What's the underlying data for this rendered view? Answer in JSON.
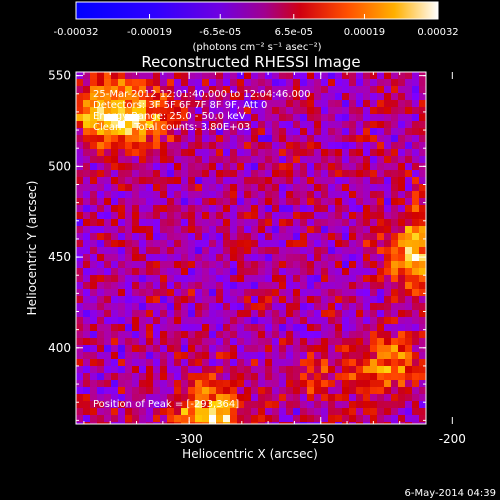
{
  "colorbar": {
    "tick_labels": [
      "-0.00032",
      "-0.00019",
      "-6.5e-05",
      "6.5e-05",
      "0.00019",
      "0.00032"
    ],
    "tick_values": [
      -0.00032,
      -0.00019,
      -6.5e-05,
      6.5e-05,
      0.00019,
      0.00032
    ],
    "range": [
      -0.00032,
      0.00032
    ],
    "units": "(photons cm⁻² s⁻¹ asec⁻²)",
    "colors": [
      "#0000ff",
      "#3a00ff",
      "#8000ff",
      "#b000a0",
      "#d00000",
      "#ff4000",
      "#ff9000",
      "#ffd000",
      "#ffffff"
    ]
  },
  "plot": {
    "title": "Reconstructed RHESSI Image",
    "annotations": [
      "25-Mar-2012 12:01:40.000 to 12:04:46.000",
      "Detectors: 3F 5F 6F 7F 8F 9F, Att 0",
      "Energy Range: 25.0 - 50.0 keV",
      "Clean    Total counts: 3.80E+03"
    ],
    "peak_label": "Position of Peak = [-293,364]",
    "xlabel": "Heliocentric X (arcsec)",
    "ylabel": "Heliocentric Y (arcsec)",
    "x_tick_labels": [
      "-300",
      "-250",
      "-200"
    ],
    "x_tick_values": [
      -300,
      -250,
      -200
    ],
    "y_tick_labels": [
      "550",
      "500",
      "450",
      "400"
    ],
    "y_tick_values": [
      550,
      500,
      450,
      400
    ],
    "xlim": [
      -343,
      -210
    ],
    "ylim": [
      358,
      552
    ]
  },
  "footer": {
    "timestamp": "6-May-2014 04:39"
  },
  "chart_data": {
    "type": "heatmap",
    "title": "Reconstructed RHESSI Image",
    "xlabel": "Heliocentric X (arcsec)",
    "ylabel": "Heliocentric Y (arcsec)",
    "xlim": [
      -343,
      -210
    ],
    "ylim": [
      358,
      552
    ],
    "value_range": [
      -0.00032,
      0.00032
    ],
    "peak_position": [
      -293,
      364
    ],
    "hotspots": [
      {
        "x": -293,
        "y": 364,
        "value": 0.00032
      },
      {
        "x": -332,
        "y": 530,
        "value": 0.0003
      },
      {
        "x": -318,
        "y": 525,
        "value": 0.00025
      },
      {
        "x": -215,
        "y": 450,
        "value": 0.00025
      },
      {
        "x": -225,
        "y": 390,
        "value": 0.00022
      },
      {
        "x": -205,
        "y": 470,
        "value": 0.0002
      },
      {
        "x": -250,
        "y": 385,
        "value": 0.0001
      }
    ]
  }
}
